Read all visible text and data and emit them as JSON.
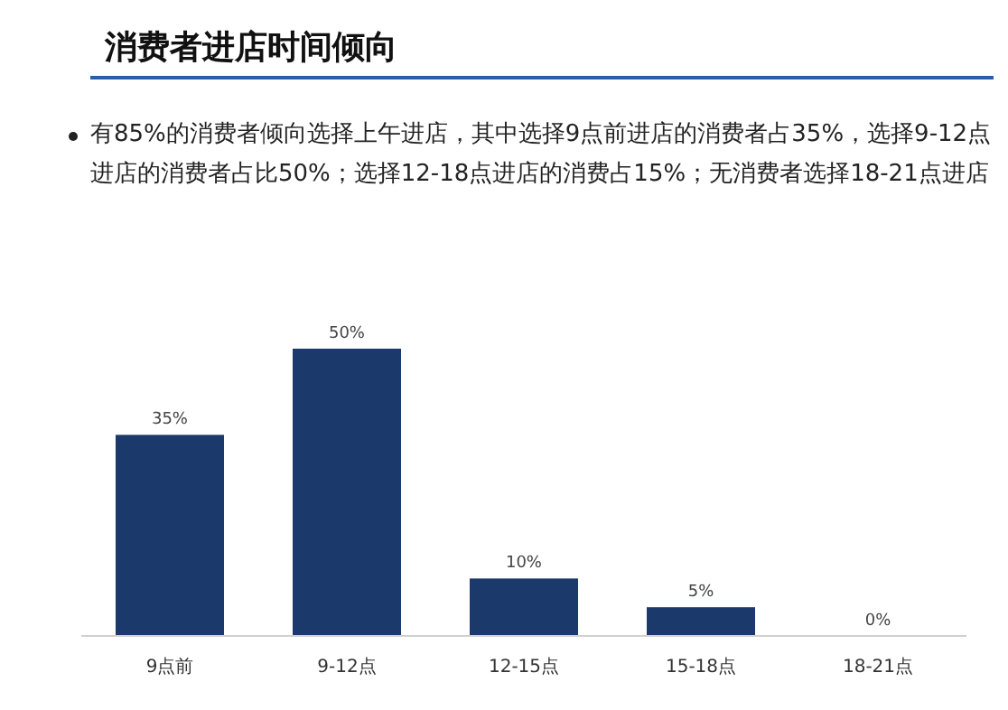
{
  "chart_data": {
    "type": "bar",
    "title": "消费者进店时间倾向",
    "subtitle": "有85%的消费者倾向选择上午进店，其中选择9点前进店的消费者占35%，选择9-12点进店的消费者占比50%；选择12-18点进店的消费占15%；无消费者选择18-21点进店",
    "categories": [
      "9点前",
      "9-12点",
      "12-15点",
      "15-18点",
      "18-21点"
    ],
    "values": [
      35,
      50,
      10,
      5,
      0
    ],
    "value_labels": [
      "35%",
      "50%",
      "10%",
      "5%",
      "0%"
    ],
    "color": "#1b3a6b"
  }
}
